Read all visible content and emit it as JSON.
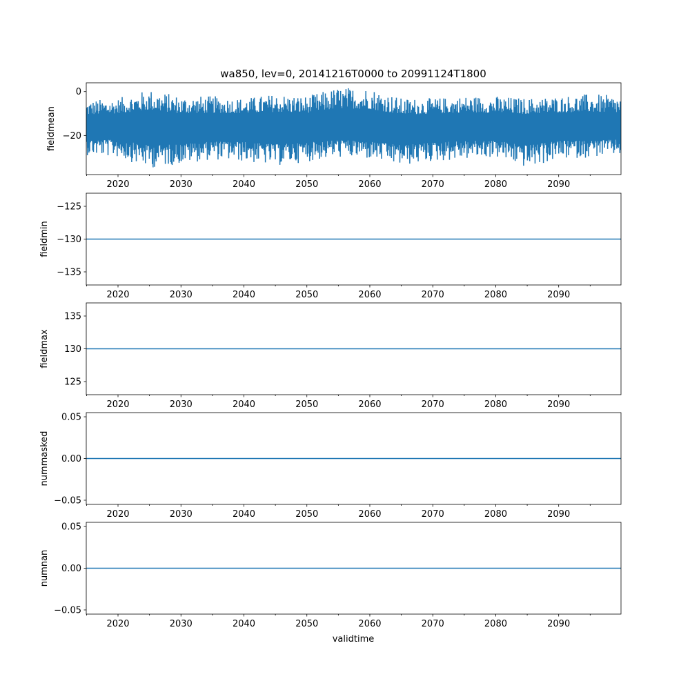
{
  "figure": {
    "title": "wa850, lev=0, 20141216T0000 to 20991124T1800",
    "xlabel": "validtime"
  },
  "chart_data": [
    {
      "type": "line",
      "ylabel": "fieldmean",
      "xlim": [
        "2014-12-16T00:00",
        "2099-11-24T18:00"
      ],
      "ylim": [
        -37.8,
        4
      ],
      "yticks": [
        "0",
        "−20"
      ],
      "ytick_values": [
        0,
        -20
      ],
      "xtick_labels": [
        "2020",
        "2030",
        "2040",
        "2050",
        "2060",
        "2070",
        "2080",
        "2090"
      ],
      "series": [
        {
          "color": "#1f77b4",
          "x": [
            "2015-01-01",
            "2020-01-01",
            "2025-01-01",
            "2030-01-01",
            "2035-01-01",
            "2040-01-01",
            "2045-01-01",
            "2050-01-01",
            "2055-01-01",
            "2060-01-01",
            "2065-01-01",
            "2070-01-01",
            "2075-01-01",
            "2080-01-01",
            "2085-01-01",
            "2090-01-01",
            "2095-01-01",
            "2099-11-24"
          ],
          "mean": [
            -16,
            -15.5,
            -16,
            -16.5,
            -16,
            -15.5,
            -16,
            -16,
            -15.5,
            -16,
            -16.5,
            -16,
            -15.5,
            -16,
            -16,
            -15.5,
            -16,
            -16
          ],
          "max": [
            -4,
            -3,
            1,
            -2,
            -2,
            -3,
            -1,
            -2,
            2,
            2,
            -3,
            -3,
            -2,
            -2,
            -3,
            -2,
            -1,
            -2
          ],
          "min": [
            -29,
            -30,
            -35,
            -33,
            -31,
            -32,
            -34,
            -32,
            -30,
            -31,
            -34,
            -32,
            -31,
            -30,
            -35,
            -31,
            -30,
            -29
          ]
        }
      ]
    },
    {
      "type": "line",
      "ylabel": "fieldmin",
      "xlim": [
        "2014-12-16T00:00",
        "2099-11-24T18:00"
      ],
      "ylim": [
        -137,
        -123
      ],
      "yticks": [
        "−125",
        "−130",
        "−135"
      ],
      "ytick_values": [
        -125,
        -130,
        -135
      ],
      "xtick_labels": [
        "2020",
        "2030",
        "2040",
        "2050",
        "2060",
        "2070",
        "2080",
        "2090"
      ],
      "series": [
        {
          "color": "#1f77b4",
          "x": [
            "2014-12-16",
            "2099-11-24"
          ],
          "y": [
            -130,
            -130
          ]
        }
      ]
    },
    {
      "type": "line",
      "ylabel": "fieldmax",
      "xlim": [
        "2014-12-16T00:00",
        "2099-11-24T18:00"
      ],
      "ylim": [
        123,
        137
      ],
      "yticks": [
        "135",
        "130",
        "125"
      ],
      "ytick_values": [
        135,
        130,
        125
      ],
      "xtick_labels": [
        "2020",
        "2030",
        "2040",
        "2050",
        "2060",
        "2070",
        "2080",
        "2090"
      ],
      "series": [
        {
          "color": "#1f77b4",
          "x": [
            "2014-12-16",
            "2099-11-24"
          ],
          "y": [
            130,
            130
          ]
        }
      ]
    },
    {
      "type": "line",
      "ylabel": "nummasked",
      "xlim": [
        "2014-12-16T00:00",
        "2099-11-24T18:00"
      ],
      "ylim": [
        -0.055,
        0.055
      ],
      "yticks": [
        "0.05",
        "0.00",
        "−0.05"
      ],
      "ytick_values": [
        0.05,
        0.0,
        -0.05
      ],
      "xtick_labels": [
        "2020",
        "2030",
        "2040",
        "2050",
        "2060",
        "2070",
        "2080",
        "2090"
      ],
      "series": [
        {
          "color": "#1f77b4",
          "x": [
            "2014-12-16",
            "2099-11-24"
          ],
          "y": [
            0,
            0
          ]
        }
      ]
    },
    {
      "type": "line",
      "ylabel": "numnan",
      "xlim": [
        "2014-12-16T00:00",
        "2099-11-24T18:00"
      ],
      "ylim": [
        -0.055,
        0.055
      ],
      "yticks": [
        "0.05",
        "0.00",
        "−0.05"
      ],
      "ytick_values": [
        0.05,
        0.0,
        -0.05
      ],
      "xtick_labels": [
        "2020",
        "2030",
        "2040",
        "2050",
        "2060",
        "2070",
        "2080",
        "2090"
      ],
      "series": [
        {
          "color": "#1f77b4",
          "x": [
            "2014-12-16",
            "2099-11-24"
          ],
          "y": [
            0,
            0
          ]
        }
      ]
    }
  ]
}
